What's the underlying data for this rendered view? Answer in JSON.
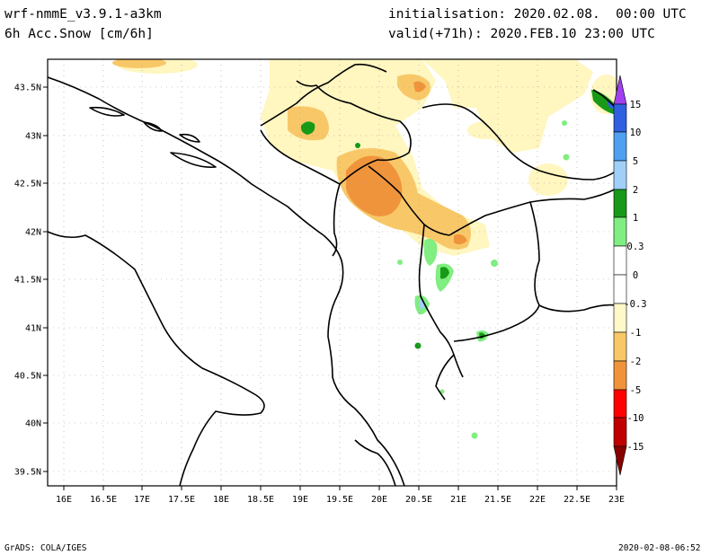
{
  "header": {
    "model": "wrf-nmmE_v3.9.1-a3km",
    "variable": "6h Acc.Snow [cm/6h]",
    "init": "initialisation: 2020.02.08.  00:00 UTC",
    "valid": "valid(+71h): 2020.FEB.10 23:00 UTC"
  },
  "footer": {
    "left": "GrADS: COLA/IGES",
    "right": "2020-02-08-06:52"
  },
  "axes": {
    "lat_labels": [
      "43.5N",
      "43N",
      "42.5N",
      "42N",
      "41.5N",
      "41N",
      "40.5N",
      "40N",
      "39.5N"
    ],
    "lon_labels": [
      "16E",
      "16.5E",
      "17E",
      "17.5E",
      "18E",
      "18.5E",
      "19E",
      "19.5E",
      "20E",
      "20.5E",
      "21E",
      "21.5E",
      "22E",
      "22.5E",
      "23E"
    ]
  },
  "colorbar": {
    "labels": [
      "15",
      "10",
      "5",
      "2",
      "1",
      "0.3",
      "0",
      "-0.3",
      "-1",
      "-2",
      "-5",
      "-10",
      "-15"
    ],
    "colors": {
      "c15": "#a040f0",
      "c10": "#3060e0",
      "c5": "#50a0f0",
      "c2": "#a0d0f8",
      "c1": "#189a18",
      "c03": "#80ee80",
      "cpos0": "#ffffff",
      "cneg0": "#ffffff",
      "cm03": "#fff8c8",
      "cm1": "#f8c868",
      "cm2": "#f0943c",
      "cm5": "#ff0000",
      "cm10": "#c00000",
      "cm15": "#880000"
    }
  },
  "colors": {
    "snow_light": "#fff6c0",
    "snow_yellow": "#f8c868",
    "snow_orange": "#f0943c",
    "snow_green": "#189a18",
    "snow_lightgreen": "#80ee80",
    "snow_blue": "#a0d0f8",
    "border": "#000000",
    "grid": "#888888"
  }
}
